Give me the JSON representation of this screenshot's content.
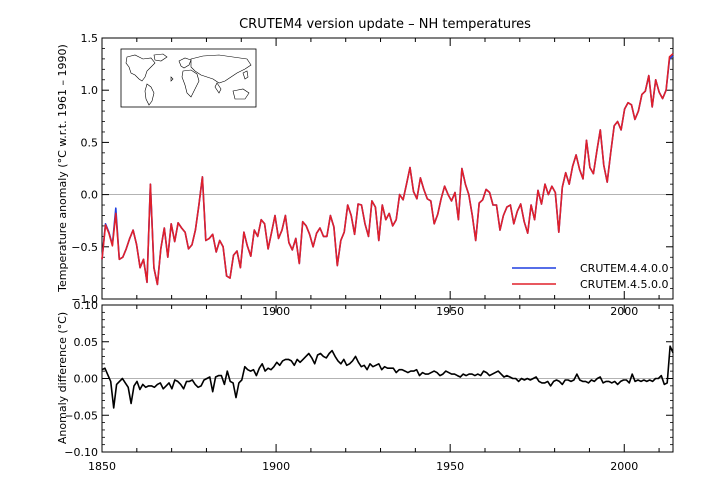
{
  "chart_data": [
    {
      "type": "line",
      "title": "CRUTEM4 version update – NH temperatures",
      "xlabel": "",
      "ylabel": "Temperature anomaly (°C w.r.t. 1961 – 1990)",
      "xlim": [
        1850,
        2014
      ],
      "ylim": [
        -1.0,
        1.5
      ],
      "xticks": [
        1850,
        1900,
        1950,
        2000
      ],
      "yticks": [
        -1.0,
        -0.5,
        0.0,
        0.5,
        1.0,
        1.5
      ],
      "ytick_labels": [
        "−1.0",
        "−0.5",
        "0.0",
        "0.5",
        "1.0",
        "1.5"
      ],
      "zero_line": true,
      "grid": false,
      "inset": "world map showing Northern Hemisphere land outlines",
      "legend": {
        "position": "bottom-right",
        "entries": [
          {
            "label": "CRUTEM.4.4.0.0",
            "color": "#1f3fe0"
          },
          {
            "label": "CRUTEM.4.5.0.0",
            "color": "#e0202a"
          }
        ]
      },
      "x_start": 1850,
      "series": [
        {
          "name": "CRUTEM.4.4.0.0",
          "color": "#1f3fe0",
          "values": [
            -0.62,
            -0.28,
            -0.36,
            -0.48,
            -0.13,
            -0.62,
            -0.6,
            -0.52,
            -0.42,
            -0.34,
            -0.48,
            -0.7,
            -0.62,
            -0.84,
            0.1,
            -0.7,
            -0.86,
            -0.52,
            -0.32,
            -0.6,
            -0.28,
            -0.45,
            -0.27,
            -0.32,
            -0.36,
            -0.52,
            -0.48,
            -0.34,
            -0.1,
            0.17,
            -0.44,
            -0.42,
            -0.38,
            -0.55,
            -0.44,
            -0.5,
            -0.78,
            -0.8,
            -0.58,
            -0.54,
            -0.7,
            -0.36,
            -0.49,
            -0.59,
            -0.34,
            -0.4,
            -0.24,
            -0.28,
            -0.52,
            -0.36,
            -0.2,
            -0.42,
            -0.34,
            -0.2,
            -0.46,
            -0.53,
            -0.42,
            -0.66,
            -0.26,
            -0.3,
            -0.38,
            -0.5,
            -0.37,
            -0.32,
            -0.4,
            -0.4,
            -0.2,
            -0.31,
            -0.68,
            -0.44,
            -0.36,
            -0.1,
            -0.2,
            -0.38,
            -0.09,
            -0.1,
            -0.28,
            -0.4,
            -0.06,
            -0.12,
            -0.44,
            -0.1,
            -0.24,
            -0.18,
            -0.3,
            -0.24,
            0.0,
            -0.05,
            0.1,
            0.26,
            0.03,
            -0.04,
            0.16,
            0.05,
            -0.04,
            -0.06,
            -0.28,
            -0.19,
            -0.04,
            0.08,
            0.0,
            -0.06,
            0.02,
            -0.24,
            0.25,
            0.1,
            0.0,
            -0.2,
            -0.44,
            -0.08,
            -0.05,
            0.05,
            0.02,
            -0.1,
            -0.1,
            -0.34,
            -0.2,
            -0.12,
            -0.1,
            -0.28,
            -0.16,
            -0.09,
            -0.26,
            -0.37,
            -0.1,
            -0.24,
            0.04,
            -0.09,
            0.1,
            0.0,
            0.08,
            0.02,
            -0.36,
            0.07,
            0.21,
            0.1,
            0.27,
            0.38,
            0.24,
            0.15,
            0.52,
            0.26,
            0.2,
            0.42,
            0.62,
            0.28,
            0.12,
            0.4,
            0.66,
            0.7,
            0.62,
            0.82,
            0.88,
            0.86,
            0.72,
            0.8,
            0.96,
            0.99,
            1.14,
            0.84,
            1.1,
            0.98,
            0.92,
            1.0,
            1.3,
            1.33
          ]
        },
        {
          "name": "CRUTEM.4.5.0.0",
          "color": "#e0202a",
          "values": [
            -0.62,
            -0.29,
            -0.37,
            -0.49,
            -0.18,
            -0.62,
            -0.6,
            -0.52,
            -0.42,
            -0.34,
            -0.48,
            -0.7,
            -0.62,
            -0.84,
            0.1,
            -0.7,
            -0.86,
            -0.52,
            -0.32,
            -0.6,
            -0.28,
            -0.45,
            -0.27,
            -0.32,
            -0.36,
            -0.52,
            -0.48,
            -0.34,
            -0.1,
            0.17,
            -0.44,
            -0.42,
            -0.38,
            -0.55,
            -0.44,
            -0.5,
            -0.78,
            -0.8,
            -0.58,
            -0.54,
            -0.7,
            -0.36,
            -0.49,
            -0.59,
            -0.34,
            -0.4,
            -0.24,
            -0.28,
            -0.52,
            -0.36,
            -0.2,
            -0.42,
            -0.34,
            -0.2,
            -0.46,
            -0.53,
            -0.42,
            -0.66,
            -0.26,
            -0.3,
            -0.38,
            -0.5,
            -0.37,
            -0.32,
            -0.4,
            -0.4,
            -0.2,
            -0.31,
            -0.68,
            -0.44,
            -0.36,
            -0.1,
            -0.2,
            -0.38,
            -0.09,
            -0.1,
            -0.28,
            -0.4,
            -0.06,
            -0.12,
            -0.44,
            -0.1,
            -0.24,
            -0.18,
            -0.3,
            -0.24,
            0.0,
            -0.05,
            0.1,
            0.26,
            0.03,
            -0.04,
            0.16,
            0.05,
            -0.04,
            -0.06,
            -0.28,
            -0.19,
            -0.04,
            0.08,
            0.0,
            -0.06,
            0.02,
            -0.24,
            0.25,
            0.1,
            0.0,
            -0.2,
            -0.44,
            -0.08,
            -0.05,
            0.05,
            0.02,
            -0.1,
            -0.1,
            -0.34,
            -0.2,
            -0.12,
            -0.1,
            -0.28,
            -0.16,
            -0.09,
            -0.26,
            -0.37,
            -0.1,
            -0.24,
            0.04,
            -0.09,
            0.1,
            0.0,
            0.08,
            0.02,
            -0.36,
            0.07,
            0.21,
            0.1,
            0.27,
            0.38,
            0.24,
            0.15,
            0.52,
            0.26,
            0.2,
            0.42,
            0.62,
            0.28,
            0.12,
            0.4,
            0.66,
            0.7,
            0.62,
            0.82,
            0.88,
            0.86,
            0.72,
            0.8,
            0.96,
            0.99,
            1.14,
            0.84,
            1.1,
            0.98,
            0.92,
            1.0,
            1.32,
            1.35
          ]
        }
      ]
    },
    {
      "type": "line",
      "xlabel": "",
      "ylabel": "Anomaly difference (°C)",
      "xlim": [
        1850,
        2014
      ],
      "ylim": [
        -0.1,
        0.1
      ],
      "xticks": [
        1850,
        1900,
        1950,
        2000
      ],
      "yticks": [
        -0.1,
        -0.05,
        0.0,
        0.05,
        0.1
      ],
      "ytick_labels": [
        "−0.10",
        "−0.05",
        "0.00",
        "0.05",
        "0.10"
      ],
      "zero_line": true,
      "grid": false,
      "x_start": 1850,
      "series": [
        {
          "color": "#000000",
          "values": [
            0.012,
            0.014,
            0.005,
            -0.004,
            -0.04,
            -0.008,
            -0.004,
            0.0,
            -0.006,
            -0.012,
            -0.034,
            -0.01,
            -0.004,
            -0.015,
            -0.008,
            -0.012,
            -0.01,
            -0.01,
            -0.012,
            -0.008,
            -0.006,
            -0.014,
            -0.01,
            -0.006,
            -0.014,
            -0.002,
            -0.004,
            -0.008,
            -0.014,
            -0.004,
            -0.004,
            -0.002,
            -0.008,
            -0.012,
            -0.01,
            -0.002,
            0.0,
            0.002,
            -0.018,
            0.002,
            0.004,
            0.004,
            -0.008,
            0.01,
            -0.004,
            -0.006,
            -0.026,
            -0.006,
            -0.002,
            0.016,
            0.012,
            0.01,
            0.012,
            0.004,
            0.014,
            0.02,
            0.01,
            0.014,
            0.012,
            0.016,
            0.022,
            0.018,
            0.024,
            0.026,
            0.026,
            0.024,
            0.018,
            0.026,
            0.022,
            0.026,
            0.03,
            0.034,
            0.028,
            0.02,
            0.032,
            0.034,
            0.03,
            0.028,
            0.034,
            0.038,
            0.03,
            0.024,
            0.02,
            0.026,
            0.018,
            0.02,
            0.024,
            0.03,
            0.022,
            0.016,
            0.018,
            0.012,
            0.02,
            0.016,
            0.018,
            0.02,
            0.012,
            0.016,
            0.014,
            0.014,
            0.014,
            0.008,
            0.012,
            0.012,
            0.01,
            0.008,
            0.01,
            0.01,
            0.012,
            0.004,
            0.008,
            0.006,
            0.006,
            0.008,
            0.01,
            0.008,
            0.004,
            0.006,
            0.01,
            0.008,
            0.006,
            0.006,
            0.004,
            0.002,
            0.006,
            0.004,
            0.006,
            0.006,
            0.004,
            0.006,
            0.004,
            0.01,
            0.008,
            0.004,
            0.006,
            0.008,
            0.01,
            0.006,
            0.002,
            0.004,
            0.002,
            0.0,
            0.0,
            -0.004,
            0.0,
            -0.002,
            0.0,
            -0.002,
            0.0,
            0.002,
            -0.004,
            -0.006,
            -0.006,
            -0.004,
            -0.01,
            -0.004,
            -0.002,
            -0.004,
            -0.008,
            -0.002,
            -0.002,
            -0.004,
            -0.002,
            0.006,
            -0.002,
            -0.004,
            -0.004,
            -0.006,
            -0.002,
            -0.004,
            0.0,
            0.002,
            -0.006,
            -0.004,
            -0.004,
            -0.006,
            -0.004,
            -0.008,
            -0.004,
            -0.002,
            -0.002,
            -0.006,
            0.006,
            -0.004,
            -0.002,
            -0.004,
            -0.002,
            -0.004,
            -0.002,
            -0.004,
            0.0,
            0.0,
            0.004,
            -0.008,
            -0.006,
            0.044,
            0.035
          ]
        }
      ]
    }
  ]
}
